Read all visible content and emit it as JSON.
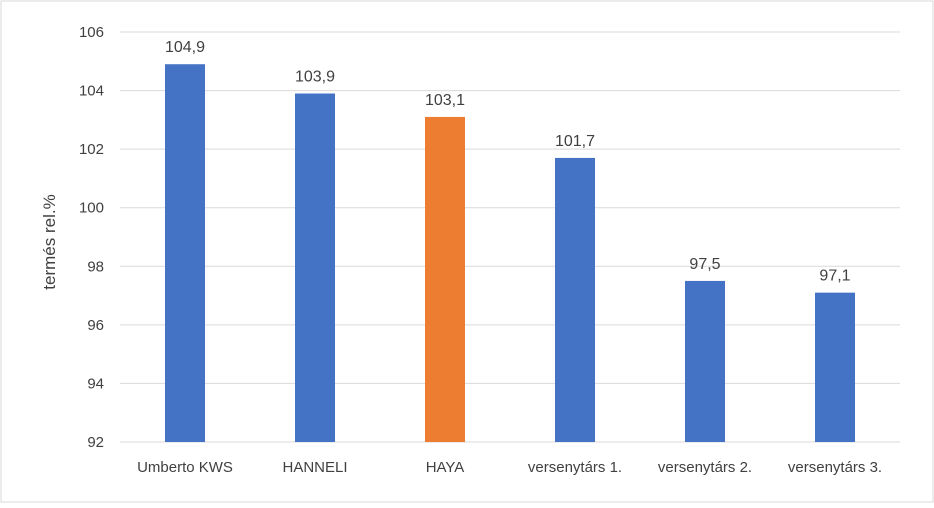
{
  "chart_data": {
    "type": "bar",
    "categories": [
      "Umberto KWS",
      "HANNELI",
      "HAYA",
      "versenytárs 1.",
      "versenytárs 2.",
      "versenytárs 3."
    ],
    "values": [
      104.9,
      103.9,
      103.1,
      101.7,
      97.5,
      97.1
    ],
    "value_labels": [
      "104,9",
      "103,9",
      "103,1",
      "101,7",
      "97,5",
      "97,1"
    ],
    "bar_colors": [
      "#4472c4",
      "#4472c4",
      "#ed7d31",
      "#4472c4",
      "#4472c4",
      "#4472c4"
    ],
    "ylabel": "termés rel.%",
    "xlabel": "",
    "ylim": [
      92,
      106
    ],
    "yticks": [
      92,
      94,
      96,
      98,
      100,
      102,
      104,
      106
    ],
    "grid": true,
    "legend": "none"
  }
}
